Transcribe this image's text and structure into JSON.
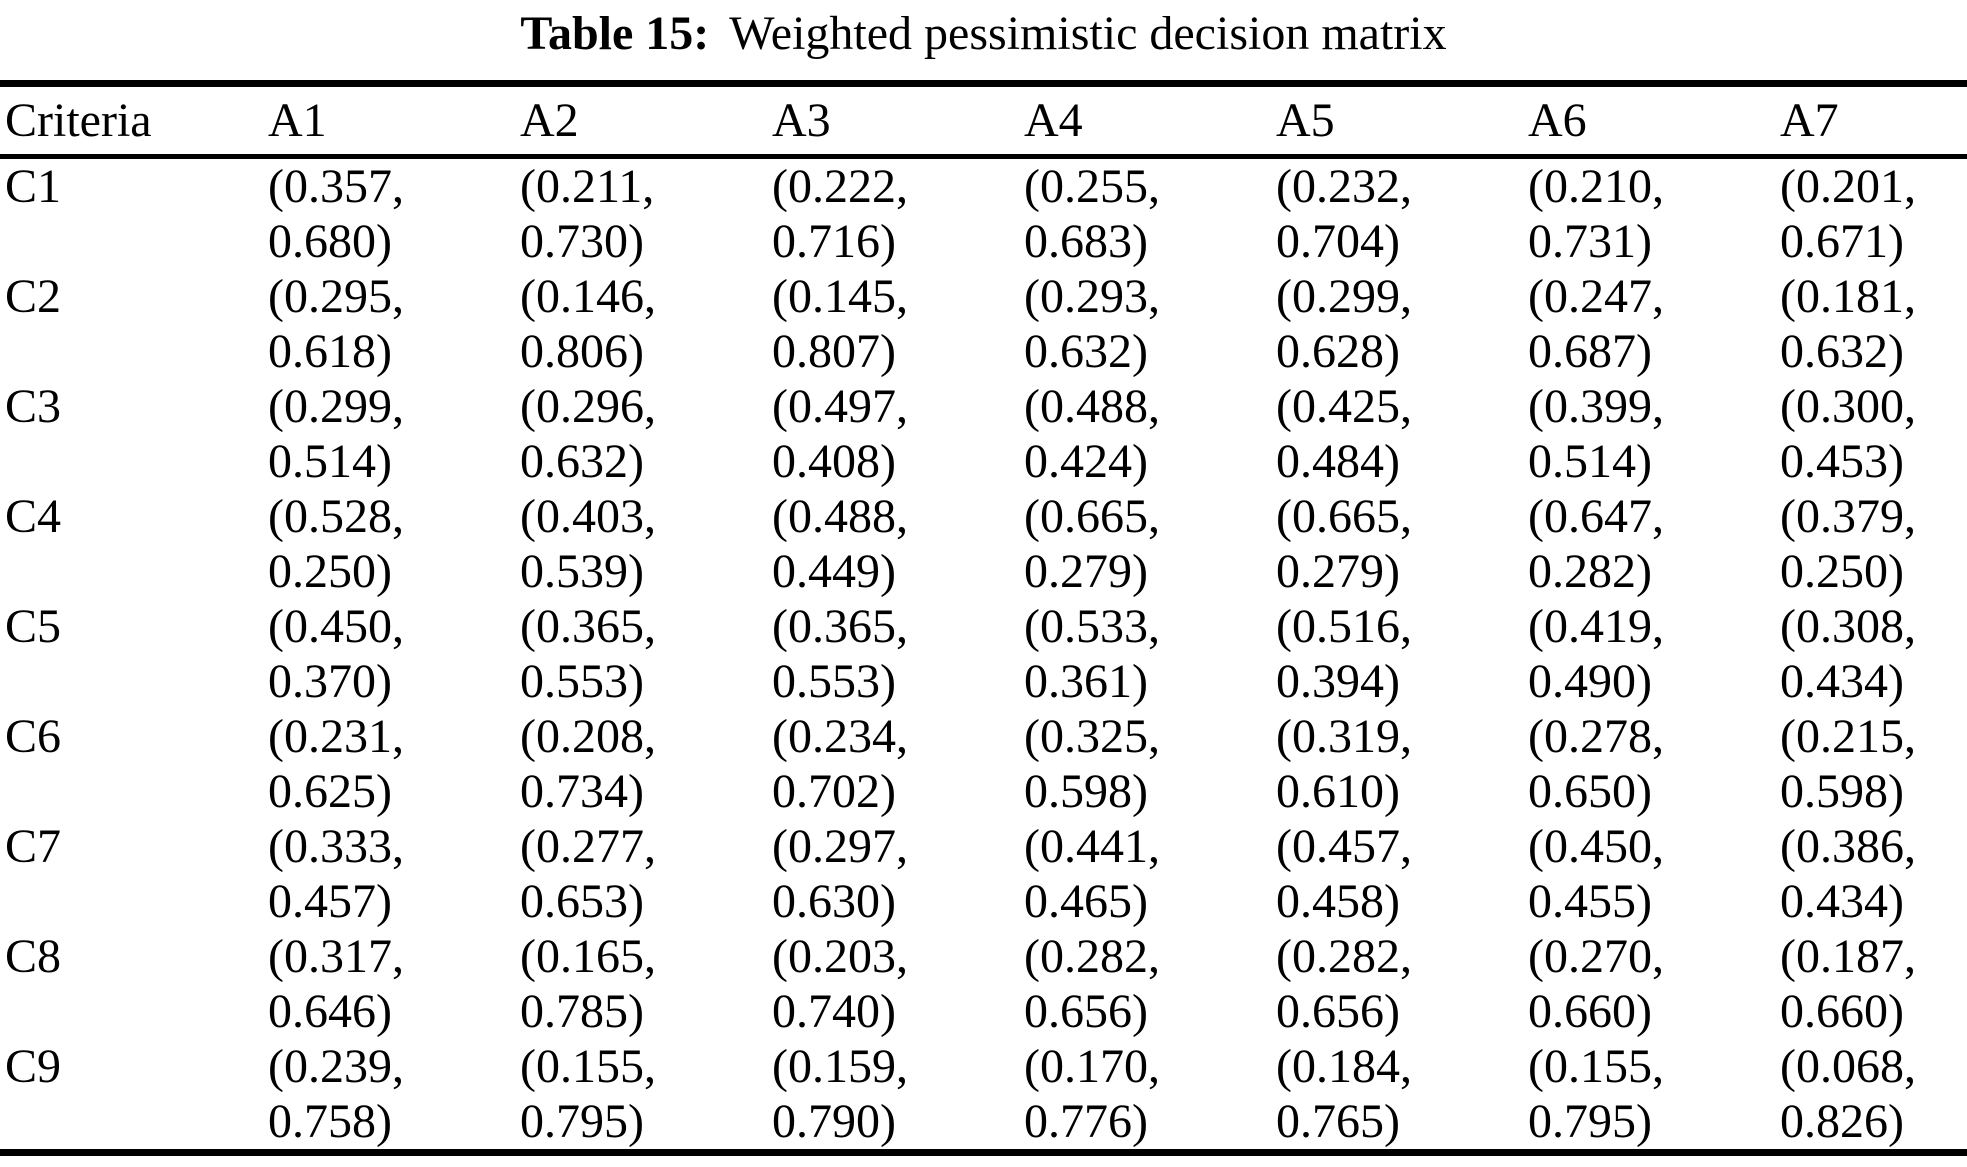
{
  "colors": {
    "background": "#ffffff",
    "text": "#000000",
    "rule": "#000000"
  },
  "caption": {
    "label": "Table 15:",
    "title": "Weighted pessimistic decision matrix"
  },
  "chart_data": {
    "type": "table",
    "title": "Table 15: Weighted pessimistic decision matrix",
    "columns": [
      "Criteria",
      "A1",
      "A2",
      "A3",
      "A4",
      "A5",
      "A6",
      "A7"
    ],
    "cell_format": "(lower, upper) wrapped onto two lines",
    "rows": [
      {
        "criterion": "C1",
        "cells": [
          [
            "0.357",
            "0.680"
          ],
          [
            "0.211",
            "0.730"
          ],
          [
            "0.222",
            "0.716"
          ],
          [
            "0.255",
            "0.683"
          ],
          [
            "0.232",
            "0.704"
          ],
          [
            "0.210",
            "0.731"
          ],
          [
            "0.201",
            "0.671"
          ]
        ]
      },
      {
        "criterion": "C2",
        "cells": [
          [
            "0.295",
            "0.618"
          ],
          [
            "0.146",
            "0.806"
          ],
          [
            "0.145",
            "0.807"
          ],
          [
            "0.293",
            "0.632"
          ],
          [
            "0.299",
            "0.628"
          ],
          [
            "0.247",
            "0.687"
          ],
          [
            "0.181",
            "0.632"
          ]
        ]
      },
      {
        "criterion": "C3",
        "cells": [
          [
            "0.299",
            "0.514"
          ],
          [
            "0.296",
            "0.632"
          ],
          [
            "0.497",
            "0.408"
          ],
          [
            "0.488",
            "0.424"
          ],
          [
            "0.425",
            "0.484"
          ],
          [
            "0.399",
            "0.514"
          ],
          [
            "0.300",
            "0.453"
          ]
        ]
      },
      {
        "criterion": "C4",
        "cells": [
          [
            "0.528",
            "0.250"
          ],
          [
            "0.403",
            "0.539"
          ],
          [
            "0.488",
            "0.449"
          ],
          [
            "0.665",
            "0.279"
          ],
          [
            "0.665",
            "0.279"
          ],
          [
            "0.647",
            "0.282"
          ],
          [
            "0.379",
            "0.250"
          ]
        ]
      },
      {
        "criterion": "C5",
        "cells": [
          [
            "0.450",
            "0.370"
          ],
          [
            "0.365",
            "0.553"
          ],
          [
            "0.365",
            "0.553"
          ],
          [
            "0.533",
            "0.361"
          ],
          [
            "0.516",
            "0.394"
          ],
          [
            "0.419",
            "0.490"
          ],
          [
            "0.308",
            "0.434"
          ]
        ]
      },
      {
        "criterion": "C6",
        "cells": [
          [
            "0.231",
            "0.625"
          ],
          [
            "0.208",
            "0.734"
          ],
          [
            "0.234",
            "0.702"
          ],
          [
            "0.325",
            "0.598"
          ],
          [
            "0.319",
            "0.610"
          ],
          [
            "0.278",
            "0.650"
          ],
          [
            "0.215",
            "0.598"
          ]
        ]
      },
      {
        "criterion": "C7",
        "cells": [
          [
            "0.333",
            "0.457"
          ],
          [
            "0.277",
            "0.653"
          ],
          [
            "0.297",
            "0.630"
          ],
          [
            "0.441",
            "0.465"
          ],
          [
            "0.457",
            "0.458"
          ],
          [
            "0.450",
            "0.455"
          ],
          [
            "0.386",
            "0.434"
          ]
        ]
      },
      {
        "criterion": "C8",
        "cells": [
          [
            "0.317",
            "0.646"
          ],
          [
            "0.165",
            "0.785"
          ],
          [
            "0.203",
            "0.740"
          ],
          [
            "0.282",
            "0.656"
          ],
          [
            "0.282",
            "0.656"
          ],
          [
            "0.270",
            "0.660"
          ],
          [
            "0.187",
            "0.660"
          ]
        ]
      },
      {
        "criterion": "C9",
        "cells": [
          [
            "0.239",
            "0.758"
          ],
          [
            "0.155",
            "0.795"
          ],
          [
            "0.159",
            "0.790"
          ],
          [
            "0.170",
            "0.776"
          ],
          [
            "0.184",
            "0.765"
          ],
          [
            "0.155",
            "0.795"
          ],
          [
            "0.068",
            "0.826"
          ]
        ]
      }
    ]
  }
}
